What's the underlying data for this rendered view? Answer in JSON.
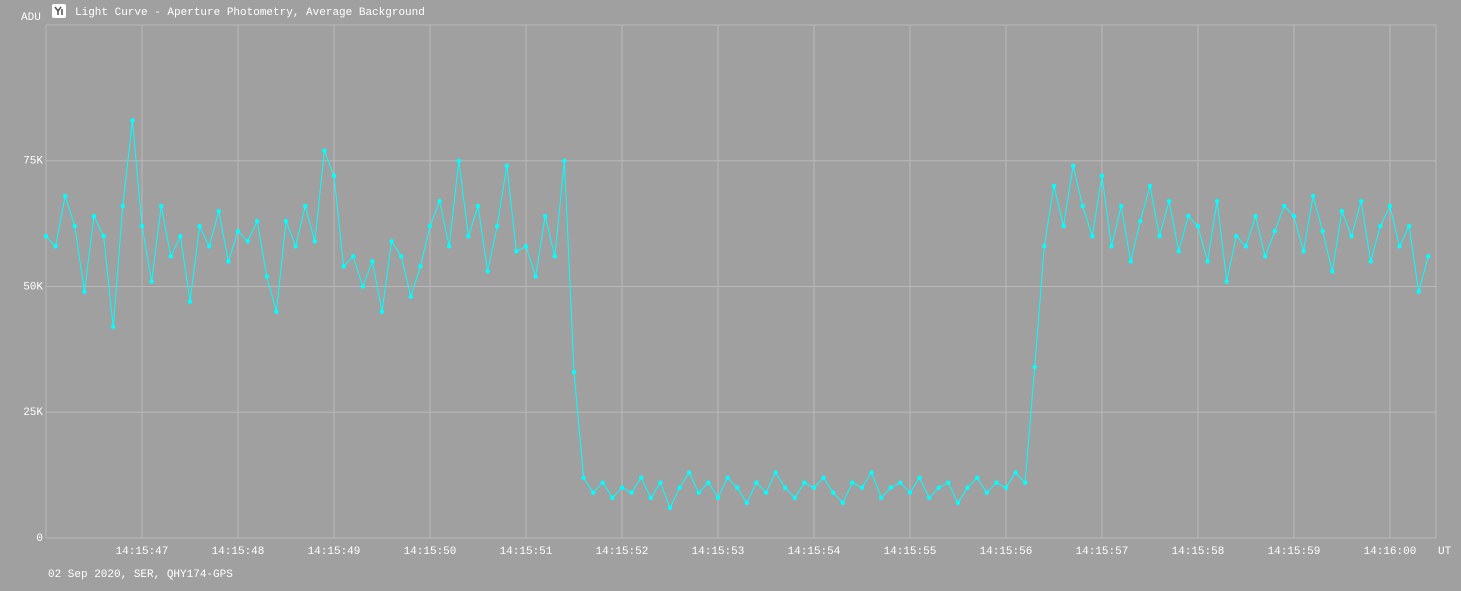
{
  "chart_data": {
    "type": "line",
    "title": "Light Curve - Aperture Photometry, Average Background",
    "y_label": "ADU",
    "x_unit": "UT",
    "footer": "02 Sep 2020, SER, QHY174-GPS",
    "grid": true,
    "xlim": [
      46.0,
      60.48
    ],
    "ylim": [
      0,
      102000
    ],
    "xticks": [
      {
        "value": 47,
        "label": "14:15:47"
      },
      {
        "value": 48,
        "label": "14:15:48"
      },
      {
        "value": 49,
        "label": "14:15:49"
      },
      {
        "value": 50,
        "label": "14:15:50"
      },
      {
        "value": 51,
        "label": "14:15:51"
      },
      {
        "value": 52,
        "label": "14:15:52"
      },
      {
        "value": 53,
        "label": "14:15:53"
      },
      {
        "value": 54,
        "label": "14:15:54"
      },
      {
        "value": 55,
        "label": "14:15:55"
      },
      {
        "value": 56,
        "label": "14:15:56"
      },
      {
        "value": 57,
        "label": "14:15:57"
      },
      {
        "value": 58,
        "label": "14:15:58"
      },
      {
        "value": 59,
        "label": "14:15:59"
      },
      {
        "value": 60,
        "label": "14:16:00"
      }
    ],
    "yticks": [
      0,
      {
        "value": 25000,
        "label": "25K"
      },
      {
        "value": 50000,
        "label": "50K"
      },
      {
        "value": 75000,
        "label": "75K"
      }
    ],
    "x": [
      46.0,
      46.1,
      46.2,
      46.3,
      46.4,
      46.5,
      46.6,
      46.7,
      46.8,
      46.9,
      47.0,
      47.1,
      47.2,
      47.3,
      47.4,
      47.5,
      47.6,
      47.7,
      47.8,
      47.9,
      48.0,
      48.1,
      48.2,
      48.3,
      48.4,
      48.5,
      48.6,
      48.7,
      48.8,
      48.9,
      49.0,
      49.1,
      49.2,
      49.3,
      49.4,
      49.5,
      49.6,
      49.7,
      49.8,
      49.9,
      50.0,
      50.1,
      50.2,
      50.3,
      50.4,
      50.5,
      50.6,
      50.7,
      50.8,
      50.9,
      51.0,
      51.1,
      51.2,
      51.3,
      51.4,
      51.5,
      51.6,
      51.7,
      51.8,
      51.9,
      52.0,
      52.1,
      52.2,
      52.3,
      52.4,
      52.5,
      52.6,
      52.7,
      52.8,
      52.9,
      53.0,
      53.1,
      53.2,
      53.3,
      53.4,
      53.5,
      53.6,
      53.7,
      53.8,
      53.9,
      54.0,
      54.1,
      54.2,
      54.3,
      54.4,
      54.5,
      54.6,
      54.7,
      54.8,
      54.9,
      55.0,
      55.1,
      55.2,
      55.3,
      55.4,
      55.5,
      55.6,
      55.7,
      55.8,
      55.9,
      56.0,
      56.1,
      56.2,
      56.3,
      56.4,
      56.5,
      56.6,
      56.7,
      56.8,
      56.9,
      57.0,
      57.1,
      57.2,
      57.3,
      57.4,
      57.5,
      57.6,
      57.7,
      57.8,
      57.9,
      58.0,
      58.1,
      58.2,
      58.3,
      58.4,
      58.5,
      58.6,
      58.7,
      58.8,
      58.9,
      59.0,
      59.1,
      59.2,
      59.3,
      59.4,
      59.5,
      59.6,
      59.7,
      59.8,
      59.9,
      60.0,
      60.1,
      60.2,
      60.3,
      60.4
    ],
    "series": [
      {
        "name": "Light curve",
        "color": "#00ffff",
        "values": [
          60000,
          58000,
          68000,
          62000,
          49000,
          64000,
          60000,
          42000,
          66000,
          83000,
          62000,
          51000,
          66000,
          56000,
          60000,
          47000,
          62000,
          58000,
          65000,
          55000,
          61000,
          59000,
          63000,
          52000,
          45000,
          63000,
          58000,
          66000,
          59000,
          77000,
          72000,
          54000,
          56000,
          50000,
          55000,
          45000,
          59000,
          56000,
          48000,
          54000,
          62000,
          67000,
          58000,
          75000,
          60000,
          66000,
          53000,
          62000,
          74000,
          57000,
          58000,
          52000,
          64000,
          56000,
          75000,
          33000,
          12000,
          9000,
          11000,
          8000,
          10000,
          9000,
          12000,
          8000,
          11000,
          6000,
          10000,
          13000,
          9000,
          11000,
          8000,
          12000,
          10000,
          7000,
          11000,
          9000,
          13000,
          10000,
          8000,
          11000,
          10000,
          12000,
          9000,
          7000,
          11000,
          10000,
          13000,
          8000,
          10000,
          11000,
          9000,
          12000,
          8000,
          10000,
          11000,
          7000,
          10000,
          12000,
          9000,
          11000,
          10000,
          13000,
          11000,
          34000,
          58000,
          70000,
          62000,
          74000,
          66000,
          60000,
          72000,
          58000,
          66000,
          55000,
          63000,
          70000,
          60000,
          67000,
          57000,
          64000,
          62000,
          55000,
          67000,
          51000,
          60000,
          58000,
          64000,
          56000,
          61000,
          66000,
          64000,
          57000,
          68000,
          61000,
          53000,
          65000,
          60000,
          67000,
          55000,
          62000,
          66000,
          58000,
          62000,
          49000,
          56000
        ]
      }
    ]
  }
}
